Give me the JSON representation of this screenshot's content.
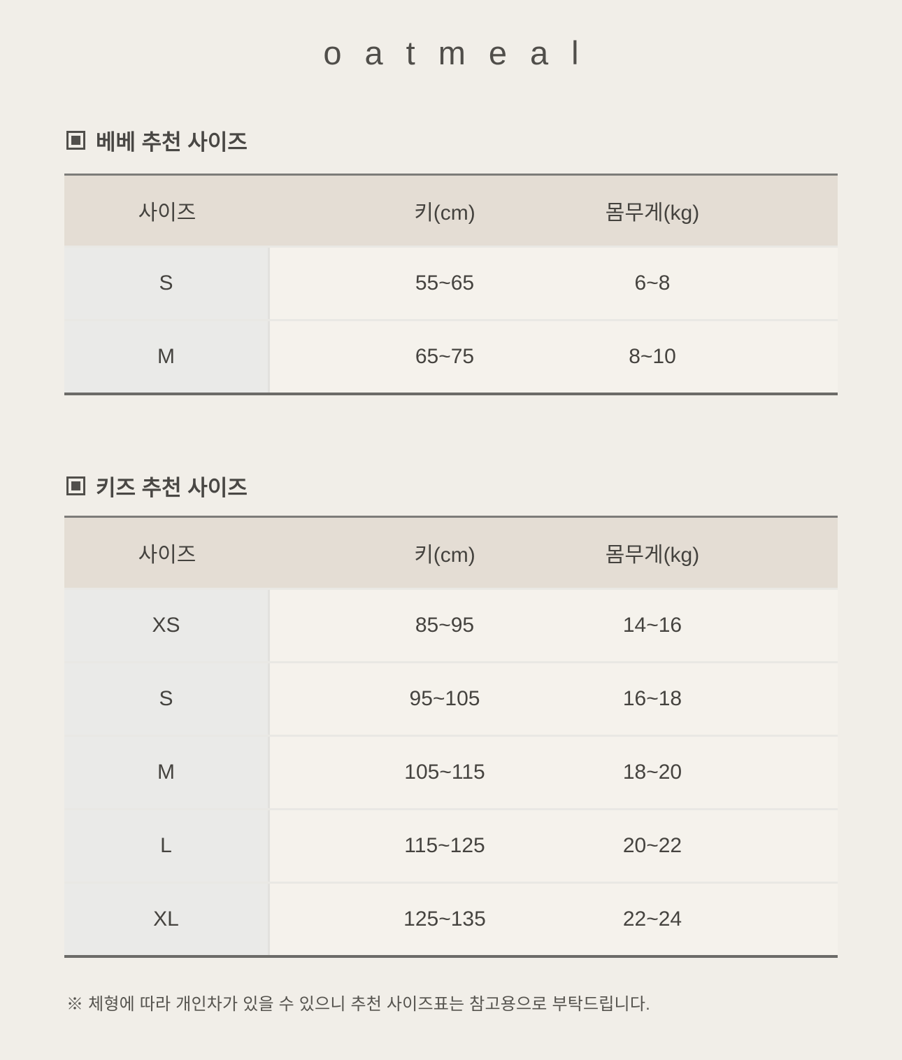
{
  "logo": {
    "text": "oatmeal"
  },
  "sections": [
    {
      "title": "베베 추천 사이즈",
      "table": {
        "columns": [
          "사이즈",
          "키(cm)",
          "몸무게(kg)"
        ],
        "rows": [
          {
            "size": "S",
            "height": "55~65",
            "weight": "6~8"
          },
          {
            "size": "M",
            "height": "65~75",
            "weight": "8~10"
          }
        ]
      }
    },
    {
      "title": "키즈 추천 사이즈",
      "table": {
        "columns": [
          "사이즈",
          "키(cm)",
          "몸무게(kg)"
        ],
        "rows": [
          {
            "size": "XS",
            "height": "85~95",
            "weight": "14~16"
          },
          {
            "size": "S",
            "height": "95~105",
            "weight": "16~18"
          },
          {
            "size": "M",
            "height": "105~115",
            "weight": "18~20"
          },
          {
            "size": "L",
            "height": "115~125",
            "weight": "20~22"
          },
          {
            "size": "XL",
            "height": "125~135",
            "weight": "22~24"
          }
        ]
      }
    }
  ],
  "footer": {
    "note": "※ 체형에 따라 개인차가 있을 수 있으니 추천 사이즈표는 참고용으로 부탁드립니다."
  },
  "colors": {
    "page_background": "#f1eee8",
    "table_header_background": "#e4ddd4",
    "size_column_background": "#eaeae8",
    "data_cell_background": "#f5f2ec",
    "table_top_border": "#7d7c79",
    "table_bottom_border": "#6c6b68",
    "cell_divider": "#e2e1de",
    "text_dark": "#45433f",
    "logo_text": "#504e4a"
  }
}
